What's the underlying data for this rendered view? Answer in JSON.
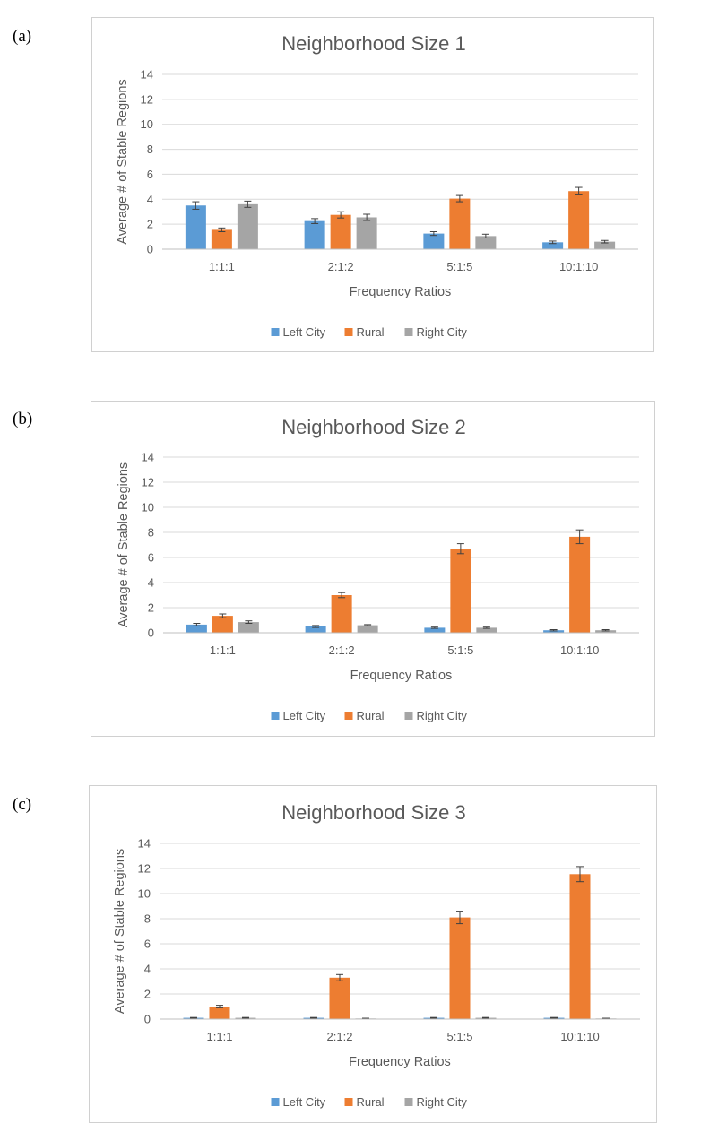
{
  "panels": [
    {
      "label": "(a)"
    },
    {
      "label": "(b)"
    },
    {
      "label": "(c)"
    }
  ],
  "colors": {
    "Left City": "#5b9bd5",
    "Rural": "#ed7d31",
    "Right City": "#a5a5a5",
    "grid": "#d9d9d9",
    "text": "#595959"
  },
  "chart_data": [
    {
      "type": "bar",
      "title": "Neighborhood Size 1",
      "xlabel": "Frequency Ratios",
      "ylabel": "Average # of Stable Regions",
      "categories": [
        "1:1:1",
        "2:1:2",
        "5:1:5",
        "10:1:10"
      ],
      "ylim": [
        0,
        14
      ],
      "yticks": [
        0,
        2,
        4,
        6,
        8,
        10,
        12,
        14
      ],
      "grid": true,
      "legend_position": "bottom",
      "series": [
        {
          "name": "Left City",
          "values": [
            3.5,
            2.25,
            1.25,
            0.55
          ],
          "errors": [
            0.3,
            0.2,
            0.15,
            0.1
          ]
        },
        {
          "name": "Rural",
          "values": [
            1.55,
            2.75,
            4.05,
            4.65
          ],
          "errors": [
            0.15,
            0.25,
            0.25,
            0.3
          ]
        },
        {
          "name": "Right City",
          "values": [
            3.6,
            2.55,
            1.05,
            0.6
          ],
          "errors": [
            0.25,
            0.25,
            0.15,
            0.1
          ]
        }
      ]
    },
    {
      "type": "bar",
      "title": "Neighborhood Size 2",
      "xlabel": "Frequency Ratios",
      "ylabel": "Average # of Stable Regions",
      "categories": [
        "1:1:1",
        "2:1:2",
        "5:1:5",
        "10:1:10"
      ],
      "ylim": [
        0,
        14
      ],
      "yticks": [
        0,
        2,
        4,
        6,
        8,
        10,
        12,
        14
      ],
      "grid": true,
      "legend_position": "bottom",
      "series": [
        {
          "name": "Left City",
          "values": [
            0.65,
            0.5,
            0.4,
            0.2
          ],
          "errors": [
            0.1,
            0.08,
            0.05,
            0.05
          ]
        },
        {
          "name": "Rural",
          "values": [
            1.35,
            3.0,
            6.7,
            7.65
          ],
          "errors": [
            0.15,
            0.2,
            0.4,
            0.55
          ]
        },
        {
          "name": "Right City",
          "values": [
            0.85,
            0.6,
            0.4,
            0.2
          ],
          "errors": [
            0.1,
            0.05,
            0.05,
            0.05
          ]
        }
      ]
    },
    {
      "type": "bar",
      "title": "Neighborhood Size 3",
      "xlabel": "Frequency Ratios",
      "ylabel": "Average # of Stable Regions",
      "categories": [
        "1:1:1",
        "2:1:2",
        "5:1:5",
        "10:1:10"
      ],
      "ylim": [
        0,
        14
      ],
      "yticks": [
        0,
        2,
        4,
        6,
        8,
        10,
        12,
        14
      ],
      "grid": true,
      "legend_position": "bottom",
      "series": [
        {
          "name": "Left City",
          "values": [
            0.1,
            0.1,
            0.1,
            0.1
          ],
          "errors": [
            0.03,
            0.03,
            0.03,
            0.03
          ]
        },
        {
          "name": "Rural",
          "values": [
            1.0,
            3.3,
            8.1,
            11.55
          ],
          "errors": [
            0.1,
            0.25,
            0.5,
            0.6
          ]
        },
        {
          "name": "Right City",
          "values": [
            0.1,
            0.05,
            0.1,
            0.05
          ],
          "errors": [
            0.03,
            0.02,
            0.03,
            0.02
          ]
        }
      ]
    }
  ]
}
